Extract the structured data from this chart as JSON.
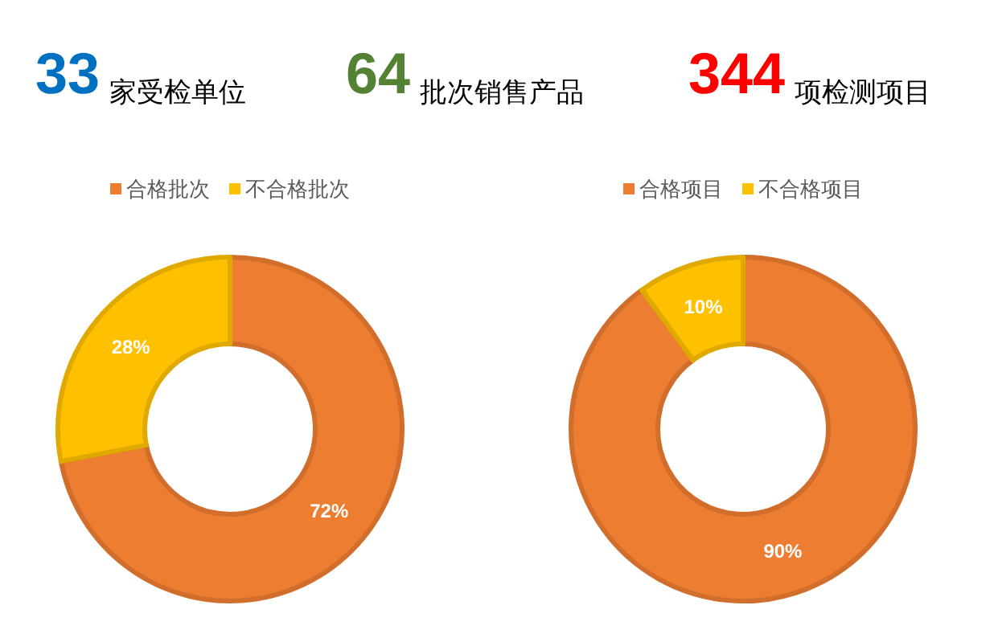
{
  "chart_data": [
    {
      "type": "other",
      "categories": [
        "家受检单位",
        "批次销售产品",
        "项检测项目"
      ],
      "values": [
        33,
        64,
        344
      ],
      "value_labels": [
        "33",
        "64",
        "344"
      ],
      "colors": [
        "#0070c0",
        "#548235",
        "#ff0000"
      ]
    },
    {
      "type": "donut",
      "categories": [
        "合格批次",
        "不合格批次"
      ],
      "values": [
        72,
        28
      ],
      "value_labels": [
        "72%",
        "28%"
      ],
      "colors": [
        "#ed7d31",
        "#ffc000"
      ],
      "legend": "top"
    },
    {
      "type": "donut",
      "categories": [
        "合格项目",
        "不合格项目"
      ],
      "values": [
        90,
        10
      ],
      "value_labels": [
        "90%",
        "10%"
      ],
      "colors": [
        "#ed7d31",
        "#ffc000"
      ],
      "legend": "top"
    }
  ]
}
